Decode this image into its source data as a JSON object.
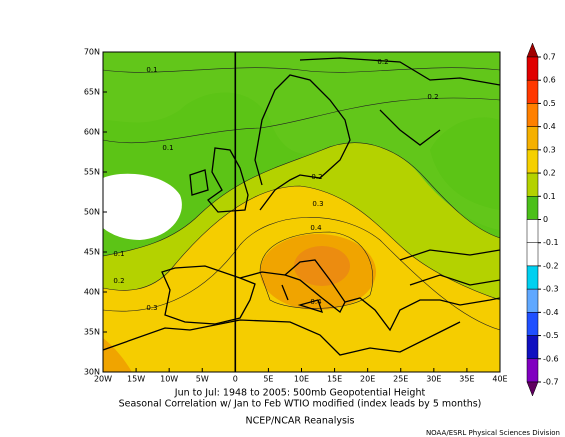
{
  "map": {
    "lon_ticks": [
      {
        "value": -20,
        "label": "20W"
      },
      {
        "value": -15,
        "label": "15W"
      },
      {
        "value": -10,
        "label": "10W"
      },
      {
        "value": -5,
        "label": "5W"
      },
      0,
      {
        "value": 5,
        "label": "5E"
      },
      {
        "value": 10,
        "label": "10E"
      },
      {
        "value": 15,
        "label": "15E"
      },
      {
        "value": 20,
        "label": "20E"
      },
      {
        "value": 25,
        "label": "25E"
      },
      {
        "value": 30,
        "label": "30E"
      },
      {
        "value": 35,
        "label": "35E"
      },
      {
        "value": 40,
        "label": "40E"
      }
    ],
    "lat_ticks": [
      {
        "value": 30,
        "label": "30N"
      },
      {
        "value": 35,
        "label": "35N"
      },
      {
        "value": 40,
        "label": "40N"
      },
      {
        "value": 45,
        "label": "45N"
      },
      {
        "value": 50,
        "label": "50N"
      },
      {
        "value": 55,
        "label": "55N"
      },
      {
        "value": 60,
        "label": "60N"
      },
      {
        "value": 65,
        "label": "65N"
      },
      {
        "value": 70,
        "label": "70N"
      }
    ],
    "lonlim": [
      -20,
      40
    ],
    "latlim": [
      30,
      70
    ],
    "contour_labels": [
      0.1,
      0.2,
      0.2,
      0.1,
      0.2,
      0.3,
      0.4,
      0.1,
      0.2,
      0.3,
      0.4
    ],
    "colorbar": {
      "levels": [
        0.7,
        0.6,
        0.5,
        0.4,
        0.3,
        0.2,
        0.1,
        0,
        -0.1,
        -0.2,
        -0.3,
        -0.4,
        -0.5,
        -0.6,
        -0.7
      ],
      "colors": [
        "#a00000",
        "#e00000",
        "#ff3800",
        "#ff8000",
        "#f5b000",
        "#f5d000",
        "#b4d200",
        "#4cc01a",
        "#ffffff",
        "#ffffff",
        "#00d0f0",
        "#60a8ff",
        "#2050ff",
        "#1010c0",
        "#8000c0",
        "#600060"
      ]
    },
    "caption_line1": "Jun to Jul: 1948 to 2005: 500mb Geopotential Height",
    "caption_line2": "Seasonal Correlation w/ Jan to Feb WTIO modified (index leads by 5 months)",
    "source": "NCEP/NCAR Reanalysis",
    "credit": "NOAA/ESRL Physical Sciences Division"
  }
}
